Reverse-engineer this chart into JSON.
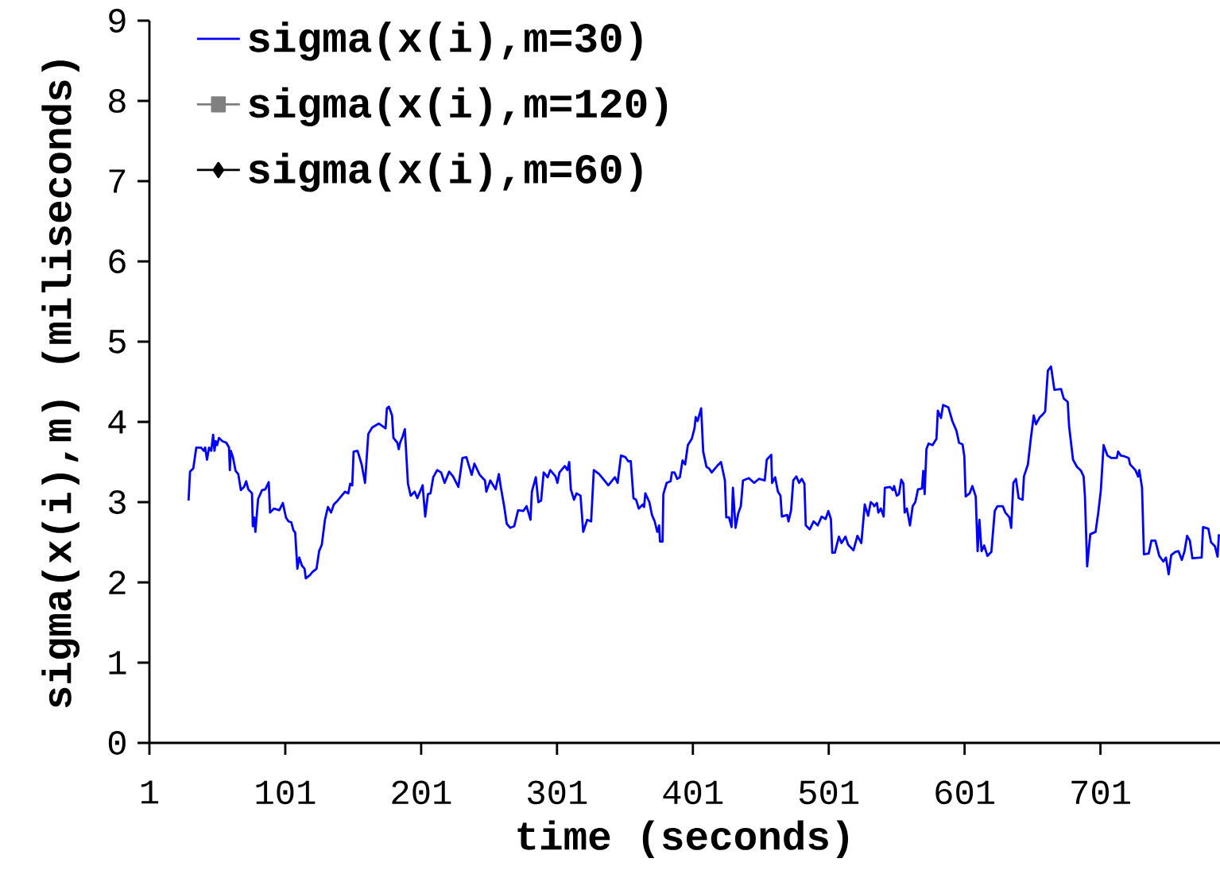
{
  "chart_data": {
    "type": "line",
    "xlabel": "time (seconds)",
    "ylabel": "sigma(x(i),m) (miliseconds)",
    "xlim": [
      1,
      789
    ],
    "ylim": [
      0,
      9
    ],
    "xticks": [
      1,
      101,
      201,
      301,
      401,
      501,
      601,
      701
    ],
    "yticks": [
      0,
      1,
      2,
      3,
      4,
      5,
      6,
      7,
      8,
      9
    ],
    "grid": false,
    "legend": "top left",
    "line_style": "solid",
    "series": [
      {
        "name": "sigma(x(i),m=30)",
        "color": "#0000ff",
        "marker": "none",
        "x": [
          29.8,
          30.9,
          33.3,
          35.5,
          39,
          41,
          42,
          43.4,
          44.9,
          46.5,
          47.9,
          48.9,
          49.8,
          50.8,
          52.2,
          54.7,
          57.6,
          59.6,
          60.2,
          60.9,
          62.5,
          64.4,
          66.4,
          68.3,
          70.7,
          72.2,
          73.8,
          76.5,
          77.1,
          78.1,
          79,
          81,
          83.9,
          86.3,
          88.8,
          89.8,
          92.7,
          96.6,
          99.2,
          101.5,
          103.4,
          105.4,
          107,
          108.3,
          109.9,
          111.3,
          113.2,
          115.2,
          116.1,
          119.1,
          121,
          124,
          125.9,
          127.9,
          130.2,
          132.4,
          134.7,
          136.7,
          139.6,
          142.5,
          144.9,
          147.4,
          148.8,
          150.3,
          151.3,
          154.2,
          157.2,
          159.7,
          162.1,
          165,
          169.9,
          174.8,
          175.8,
          177.3,
          179.6,
          180.6,
          183.5,
          184.5,
          185.5,
          187.4,
          189,
          191.3,
          193.3,
          196.2,
          198.2,
          202.1,
          204,
          206,
          207.9,
          209.9,
          212.8,
          215.7,
          218.3,
          221.6,
          224.5,
          228.4,
          231.4,
          234.3,
          238.2,
          240.2,
          244.1,
          248,
          249,
          251.9,
          255.8,
          258.2,
          259.7,
          262.1,
          264,
          266.6,
          269.5,
          272.4,
          276.3,
          278.6,
          281.5,
          282.5,
          285.4,
          287.3,
          289.3,
          291.2,
          294.1,
          296,
          299.9,
          301.3,
          302.8,
          306.7,
          308.6,
          310,
          311.2,
          313.5,
          315.4,
          318.3,
          320.3,
          323.2,
          326.1,
          328.1,
          332,
          334.9,
          338.8,
          341.7,
          343.6,
          345.6,
          348.1,
          351.4,
          353.4,
          355.3,
          357.3,
          359.2,
          361.2,
          364.1,
          365.1,
          366,
          369,
          370.9,
          372.9,
          374.8,
          376.2,
          376.8,
          378.7,
          379.3,
          381.7,
          384.6,
          385.6,
          387.5,
          389.5,
          391.4,
          393.4,
          395.3,
          397.3,
          400.2,
          402.2,
          403.1,
          404.5,
          407.1,
          408.6,
          411,
          412.9,
          414.9,
          418.8,
          421.7,
          424.6,
          425.6,
          427.6,
          429.5,
          430.5,
          432.4,
          434.4,
          436.3,
          437.9,
          442.2,
          446.1,
          449.6,
          453.9,
          455.4,
          458.7,
          459.3,
          461.6,
          463.6,
          465.5,
          466.5,
          470.4,
          471.4,
          473.3,
          474.9,
          477.2,
          479.2,
          481.1,
          483.1,
          484.1,
          487,
          489.9,
          492.9,
          495.8,
          498.7,
          500.7,
          502.6,
          503.6,
          505.5,
          508.5,
          510.4,
          513.3,
          515.3,
          519.2,
          522.1,
          525,
          527.5,
          530,
          531.9,
          533.9,
          534.5,
          536.5,
          537.5,
          539.4,
          541.4,
          542.3,
          546.2,
          548.2,
          549.1,
          551.1,
          552.7,
          554.4,
          556,
          556.9,
          558.5,
          560.8,
          562.8,
          564.7,
          566.7,
          569.6,
          570.6,
          571.6,
          572.9,
          574.5,
          577.4,
          580.3,
          581.3,
          583.6,
          585.2,
          589.1,
          592,
          595,
          596.9,
          599.5,
          600.8,
          601.8,
          604.7,
          606.7,
          609.2,
          610.6,
          611.9,
          613.5,
          615.4,
          617.8,
          620.7,
          623.2,
          625.2,
          629.1,
          631,
          634,
          635.3,
          636.9,
          638.8,
          640.8,
          643.7,
          644.7,
          647.6,
          649.6,
          651.9,
          653.5,
          656.4,
          658.4,
          660.3,
          662.3,
          664.6,
          667.1,
          672,
          674,
          676.9,
          677.9,
          680.8,
          683.7,
          686.7,
          688.6,
          689.6,
          691.2,
          693.5,
          697.4,
          699.4,
          701.3,
          703.3,
          706.2,
          709.1,
          713,
          714,
          716,
          718.9,
          721.8,
          722.8,
          726.7,
          728.7,
          729.6,
          731.6,
          733,
          736.5,
          738.5,
          741.4,
          744.3,
          747.3,
          749.2,
          751.2,
          753.1,
          756.1,
          758.4,
          760.9,
          762.9,
          764.8,
          766.8,
          768.7,
          775.5,
          776.5,
          780.4,
          782.4,
          785.3,
          787.2,
          788.2
        ],
        "values": [
          3.02,
          3.38,
          3.42,
          3.68,
          3.68,
          3.64,
          3.68,
          3.53,
          3.68,
          3.64,
          3.84,
          3.64,
          3.76,
          3.71,
          3.8,
          3.76,
          3.74,
          3.68,
          3.4,
          3.64,
          3.56,
          3.39,
          3.35,
          3.15,
          3.19,
          3.26,
          3.16,
          3.11,
          2.7,
          2.81,
          2.63,
          3.04,
          3.15,
          3.16,
          3.25,
          2.87,
          2.92,
          2.9,
          2.99,
          2.81,
          2.76,
          2.75,
          2.65,
          2.62,
          2.17,
          2.31,
          2.21,
          2.17,
          2.05,
          2.09,
          2.13,
          2.17,
          2.39,
          2.47,
          2.78,
          2.94,
          2.87,
          2.97,
          3.02,
          3.08,
          3.13,
          3.11,
          3.23,
          3.21,
          3.63,
          3.64,
          3.47,
          3.24,
          3.85,
          3.93,
          3.98,
          3.92,
          4.17,
          4.19,
          4.08,
          3.8,
          3.74,
          3.66,
          3.74,
          3.82,
          3.91,
          3.23,
          3.08,
          3.13,
          3.05,
          3.21,
          2.82,
          3.1,
          3.11,
          3.31,
          3.4,
          3.37,
          3.24,
          3.38,
          3.32,
          3.19,
          3.55,
          3.56,
          3.34,
          3.48,
          3.34,
          3.27,
          3.13,
          3.27,
          3.16,
          3.35,
          3.18,
          2.95,
          2.73,
          2.68,
          2.7,
          2.9,
          2.89,
          2.95,
          2.78,
          3.13,
          3.31,
          3.0,
          3.02,
          3.37,
          3.31,
          3.4,
          3.32,
          3.24,
          3.37,
          3.45,
          3.4,
          3.5,
          3.16,
          3.03,
          3.11,
          3.08,
          2.63,
          2.78,
          2.76,
          3.4,
          3.35,
          3.29,
          3.21,
          3.27,
          3.31,
          3.24,
          3.58,
          3.56,
          3.51,
          3.51,
          3.05,
          3.03,
          2.92,
          2.97,
          2.94,
          3.11,
          3.0,
          2.84,
          2.76,
          2.63,
          2.71,
          2.51,
          2.51,
          3.1,
          3.24,
          3.26,
          3.37,
          3.37,
          3.29,
          3.31,
          3.52,
          3.47,
          3.71,
          3.79,
          3.92,
          4.06,
          4.01,
          4.17,
          3.63,
          3.44,
          3.42,
          3.37,
          3.45,
          3.5,
          3.27,
          2.81,
          2.81,
          2.69,
          3.18,
          2.68,
          2.86,
          2.95,
          3.27,
          3.3,
          3.24,
          3.29,
          3.27,
          3.53,
          3.59,
          3.24,
          3.31,
          3.13,
          3.08,
          2.82,
          2.84,
          2.76,
          2.9,
          3.27,
          3.32,
          3.24,
          3.29,
          3.23,
          2.71,
          2.66,
          2.76,
          2.71,
          2.82,
          2.79,
          2.89,
          2.79,
          2.37,
          2.37,
          2.57,
          2.49,
          2.57,
          2.47,
          2.4,
          2.58,
          2.49,
          2.97,
          2.83,
          3.0,
          2.97,
          2.95,
          2.99,
          2.87,
          2.92,
          2.82,
          3.18,
          3.19,
          3.15,
          3.2,
          3.08,
          3.1,
          3.28,
          3.23,
          2.87,
          2.92,
          2.71,
          2.95,
          3.0,
          3.16,
          3.17,
          3.39,
          3.1,
          3.66,
          3.73,
          3.71,
          3.79,
          4.14,
          4.05,
          4.21,
          4.18,
          4.01,
          3.89,
          3.74,
          3.72,
          3.57,
          3.07,
          3.11,
          3.2,
          3.07,
          2.39,
          2.78,
          2.39,
          2.46,
          2.33,
          2.38,
          2.89,
          2.95,
          2.95,
          2.87,
          2.81,
          2.68,
          3.24,
          3.29,
          3.05,
          3.03,
          3.32,
          3.47,
          3.77,
          4.08,
          3.97,
          4.06,
          4.09,
          4.13,
          4.64,
          4.69,
          4.4,
          4.41,
          4.29,
          4.25,
          3.95,
          3.53,
          3.44,
          3.39,
          3.32,
          3.07,
          2.2,
          2.6,
          2.63,
          2.87,
          3.15,
          3.71,
          3.58,
          3.55,
          3.55,
          3.63,
          3.58,
          3.57,
          3.55,
          3.47,
          3.4,
          3.32,
          3.4,
          3.18,
          2.35,
          2.36,
          2.52,
          2.52,
          2.33,
          2.26,
          2.31,
          2.1,
          2.34,
          2.38,
          2.39,
          2.28,
          2.39,
          2.58,
          2.52,
          2.3,
          2.31,
          2.69,
          2.67,
          2.5,
          2.45,
          2.32,
          2.6
        ]
      },
      {
        "name": "sigma(x(i),m=120)",
        "color": "#808080",
        "marker": "square"
      },
      {
        "name": "sigma(x(i),m=60)",
        "color": "#000000",
        "marker": "diamond"
      }
    ]
  }
}
